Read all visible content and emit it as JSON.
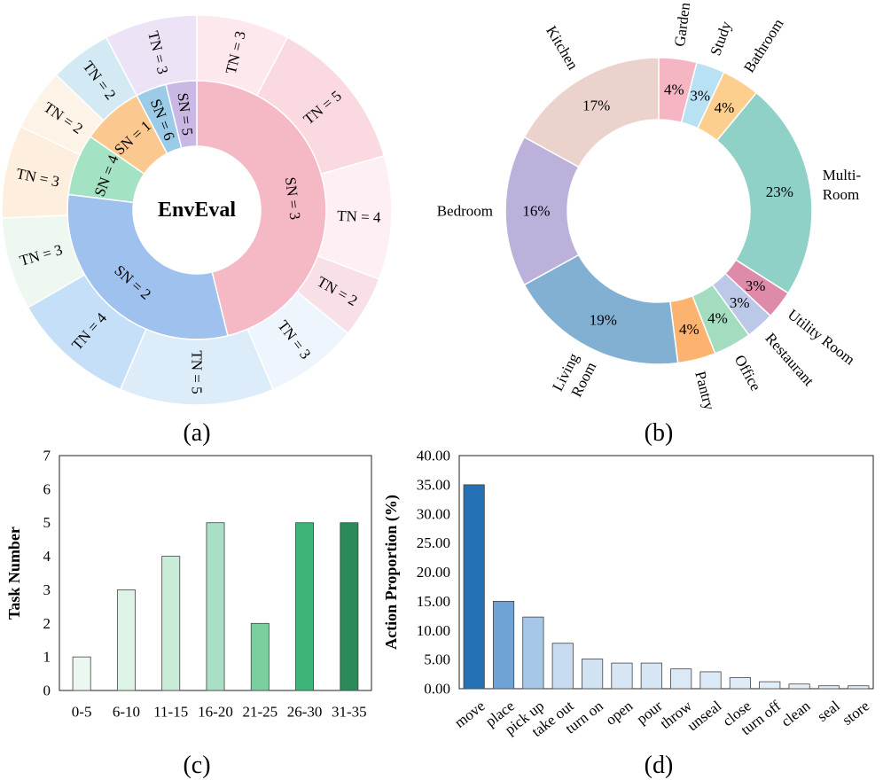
{
  "chart_data": [
    {
      "type": "sunburst",
      "panel_label": "(a)",
      "center_label": "EnvEval",
      "inner_ring": [
        {
          "label": "SN = 3",
          "value": 12,
          "color": "#f4b9c5"
        },
        {
          "label": "SN = 2",
          "value": 8,
          "color": "#9fc1ee"
        },
        {
          "label": "SN = 4",
          "value": 2,
          "color": "#a3e2c3"
        },
        {
          "label": "SN = 1",
          "value": 2,
          "color": "#fbc98f"
        },
        {
          "label": "SN = 6",
          "value": 1,
          "color": "#9bcbe6"
        },
        {
          "label": "SN = 5",
          "value": 1,
          "color": "#c9b7e4"
        }
      ],
      "outer_ring": [
        {
          "label": "TN = 3",
          "value": 3,
          "color": "#fde8ee",
          "parent": 0
        },
        {
          "label": "TN = 5",
          "value": 5,
          "color": "#fad9e1",
          "parent": 0
        },
        {
          "label": "TN = 4",
          "value": 4,
          "color": "#fdeff3",
          "parent": 0
        },
        {
          "label": "TN = 2",
          "value": 2,
          "color": "#f9dfe7",
          "parent": 0
        },
        {
          "label": "TN = 3",
          "value": 3,
          "color": "#eef5fc",
          "parent": 1
        },
        {
          "label": "TN = 5",
          "value": 5,
          "color": "#dcecf9",
          "parent": 1
        },
        {
          "label": "TN = 4",
          "value": 4,
          "color": "#c4dff7",
          "parent": 1
        },
        {
          "label": "TN = 3",
          "value": 3,
          "color": "#eef8f1",
          "parent": 2
        },
        {
          "label": "TN = 3",
          "value": 3,
          "color": "#fdeedd",
          "parent": 3
        },
        {
          "label": "TN = 2",
          "value": 2,
          "color": "#fdf3e6",
          "parent": 3
        },
        {
          "label": "TN = 2",
          "value": 2,
          "color": "#d3e9f4",
          "parent": 4
        },
        {
          "label": "TN = 3",
          "value": 3,
          "color": "#ece3f6",
          "parent": 5
        }
      ]
    },
    {
      "type": "pie",
      "style": "donut",
      "panel_label": "(b)",
      "slices": [
        {
          "label": "Garden",
          "value": 4,
          "pct": "4%",
          "color": "#f5b5c2"
        },
        {
          "label": "Study",
          "value": 3,
          "pct": "3%",
          "color": "#b9e1f4"
        },
        {
          "label": "Bathroom",
          "value": 4,
          "pct": "4%",
          "color": "#fccf8f"
        },
        {
          "label": "Multi-Room",
          "value": 23,
          "pct": "23%",
          "color": "#8fd1c6"
        },
        {
          "label": "Utility Room",
          "value": 3,
          "pct": "3%",
          "color": "#de8aa9"
        },
        {
          "label": "Restaurant",
          "value": 3,
          "pct": "3%",
          "color": "#bcc8e8"
        },
        {
          "label": "Office",
          "value": 4,
          "pct": "4%",
          "color": "#a4dcc0"
        },
        {
          "label": "Pantry",
          "value": 4,
          "pct": "4%",
          "color": "#fbb36f"
        },
        {
          "label": "Living Room",
          "value": 19,
          "pct": "19%",
          "color": "#82b0d3"
        },
        {
          "label": "Bedroom",
          "value": 16,
          "pct": "16%",
          "color": "#bbb1da"
        },
        {
          "label": "Kitchen",
          "value": 17,
          "pct": "17%",
          "color": "#ebd2cc"
        }
      ],
      "label_lines": {
        "Garden": [
          "Garden"
        ],
        "Study": [
          "Study"
        ],
        "Bathroom": [
          "Bathroom"
        ],
        "Multi-Room": [
          "Multi-",
          "Room"
        ],
        "Utility Room": [
          "Utility Room"
        ],
        "Restaurant": [
          "Restaurant"
        ],
        "Office": [
          "Office"
        ],
        "Pantry": [
          "Pantry"
        ],
        "Living Room": [
          "Living",
          "Room"
        ],
        "Bedroom": [
          "Bedroom"
        ],
        "Kitchen": [
          "Kitchen"
        ]
      }
    },
    {
      "type": "bar",
      "panel_label": "(c)",
      "ylabel": "Task Number",
      "ylim": [
        0,
        7
      ],
      "yticks": [
        "0",
        "1",
        "2",
        "3",
        "4",
        "5",
        "6",
        "7"
      ],
      "categories": [
        "0-5",
        "6-10",
        "11-15",
        "16-20",
        "21-25",
        "26-30",
        "31-35"
      ],
      "values": [
        1,
        3,
        4,
        5,
        2,
        5,
        5
      ],
      "colors": [
        "#ecf7ef",
        "#ddf3e5",
        "#c9ecd9",
        "#a9dfc4",
        "#7bcf9e",
        "#3fb478",
        "#2a8a58"
      ]
    },
    {
      "type": "bar",
      "panel_label": "(d)",
      "ylabel": "Action Proportion (%)",
      "ylim": [
        0,
        40
      ],
      "yticks": [
        "0.00",
        "5.00",
        "10.00",
        "15.00",
        "20.00",
        "25.00",
        "30.00",
        "35.00",
        "40.00"
      ],
      "categories": [
        "move",
        "place",
        "pick up",
        "take out",
        "turn on",
        "open",
        "pour",
        "throw",
        "unseal",
        "close",
        "turn off",
        "clean",
        "seal",
        "store"
      ],
      "values": [
        35.0,
        15.0,
        12.3,
        7.8,
        5.1,
        4.4,
        4.4,
        3.4,
        2.9,
        1.9,
        1.2,
        0.8,
        0.5,
        0.5
      ],
      "colors": [
        "#2571b6",
        "#6fa3d6",
        "#a6c7e8",
        "#c6dbef",
        "#d1e3f3",
        "#d6e6f5",
        "#d6e6f5",
        "#dbe9f6",
        "#dce9f6",
        "#dfecf7",
        "#e1edf8",
        "#e3eff9",
        "#e4eff9",
        "#e4eff9"
      ]
    }
  ]
}
